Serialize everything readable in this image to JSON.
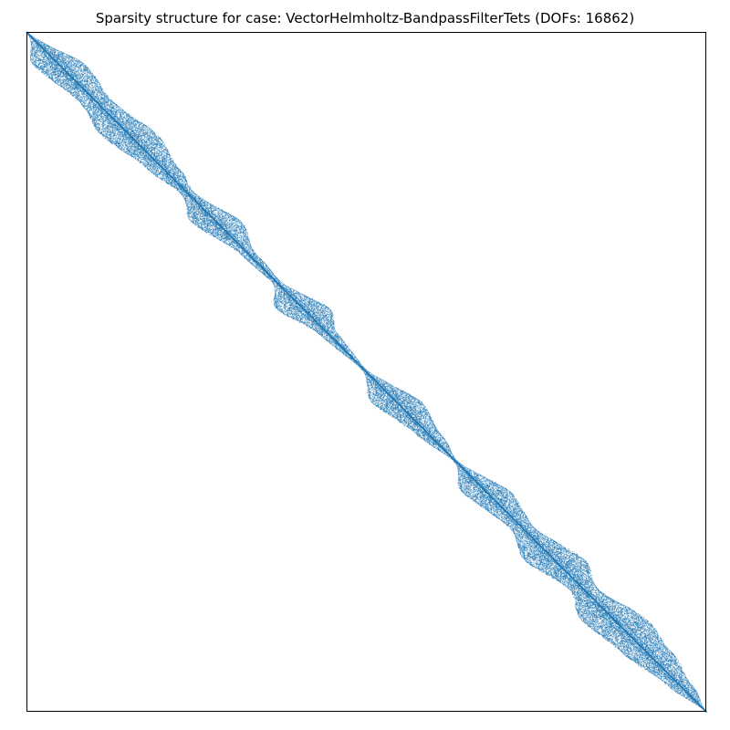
{
  "chart_data": {
    "type": "scatter",
    "title": "Sparsity structure for case: VectorHelmholtz-BandpassFilterTets (DOFs: 16862)",
    "xlabel": "",
    "ylabel": "",
    "xlim": [
      0,
      16862
    ],
    "ylim": [
      16862,
      0
    ],
    "grid": false,
    "legend": "none",
    "marker_color": "#1f77b4",
    "matrix_size": 16862,
    "band_profile": {
      "row": [
        0,
        850,
        1700,
        2550,
        3400,
        4000,
        4700,
        5500,
        6200,
        6850,
        7500,
        8350,
        9200,
        9950,
        10650,
        11400,
        12300,
        13100,
        13800,
        14600,
        15400,
        16200,
        16862
      ],
      "half_width": [
        10,
        650,
        420,
        700,
        400,
        180,
        620,
        200,
        120,
        660,
        230,
        55,
        620,
        320,
        50,
        600,
        320,
        750,
        370,
        820,
        620,
        310,
        10
      ]
    }
  }
}
